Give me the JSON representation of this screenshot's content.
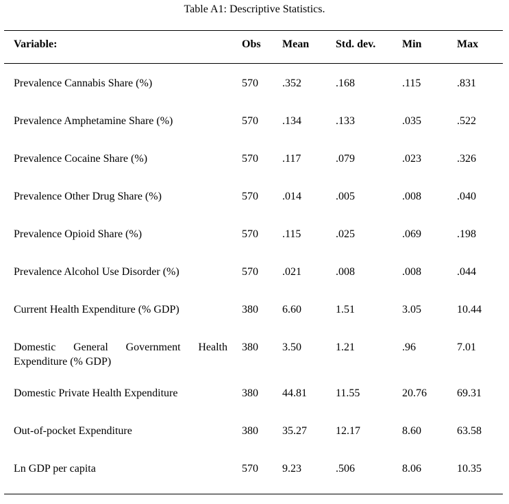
{
  "title": "Table A1: Descriptive Statistics.",
  "headers": {
    "variable": "Variable:",
    "obs": "Obs",
    "mean": "Mean",
    "sd": "Std. dev.",
    "min": "Min",
    "max": "Max"
  },
  "rows": [
    {
      "variable": "Prevalence Cannabis Share (%)",
      "obs": "570",
      "mean": ".352",
      "sd": ".168",
      "min": ".115",
      "max": ".831"
    },
    {
      "variable": "Prevalence Amphetamine Share (%)",
      "obs": "570",
      "mean": ".134",
      "sd": ".133",
      "min": ".035",
      "max": ".522"
    },
    {
      "variable": "Prevalence Cocaine Share (%)",
      "obs": "570",
      "mean": ".117",
      "sd": ".079",
      "min": ".023",
      "max": ".326"
    },
    {
      "variable": "Prevalence Other Drug Share (%)",
      "obs": "570",
      "mean": ".014",
      "sd": ".005",
      "min": ".008",
      "max": ".040"
    },
    {
      "variable": "Prevalence Opioid Share (%)",
      "obs": "570",
      "mean": ".115",
      "sd": ".025",
      "min": ".069",
      "max": ".198"
    },
    {
      "variable": "Prevalence Alcohol Use Disorder (%)",
      "obs": "570",
      "mean": ".021",
      "sd": ".008",
      "min": ".008",
      "max": ".044"
    },
    {
      "variable": "Current Health Expenditure (% GDP)",
      "obs": "380",
      "mean": "6.60",
      "sd": "1.51",
      "min": "3.05",
      "max": "10.44"
    },
    {
      "variable_line1": "Domestic General Government Health",
      "variable_line2": "Expenditure (% GDP)",
      "obs": "380",
      "mean": "3.50",
      "sd": "1.21",
      "min": ".96",
      "max": "7.01"
    },
    {
      "variable": "Domestic Private Health Expenditure",
      "obs": "380",
      "mean": "44.81",
      "sd": "11.55",
      "min": "20.76",
      "max": "69.31"
    },
    {
      "variable": "Out-of-pocket Expenditure",
      "obs": "380",
      "mean": "35.27",
      "sd": "12.17",
      "min": "8.60",
      "max": "63.58"
    },
    {
      "variable": "Ln GDP per capita",
      "obs": "570",
      "mean": "9.23",
      "sd": ".506",
      "min": "8.06",
      "max": "10.35"
    }
  ]
}
